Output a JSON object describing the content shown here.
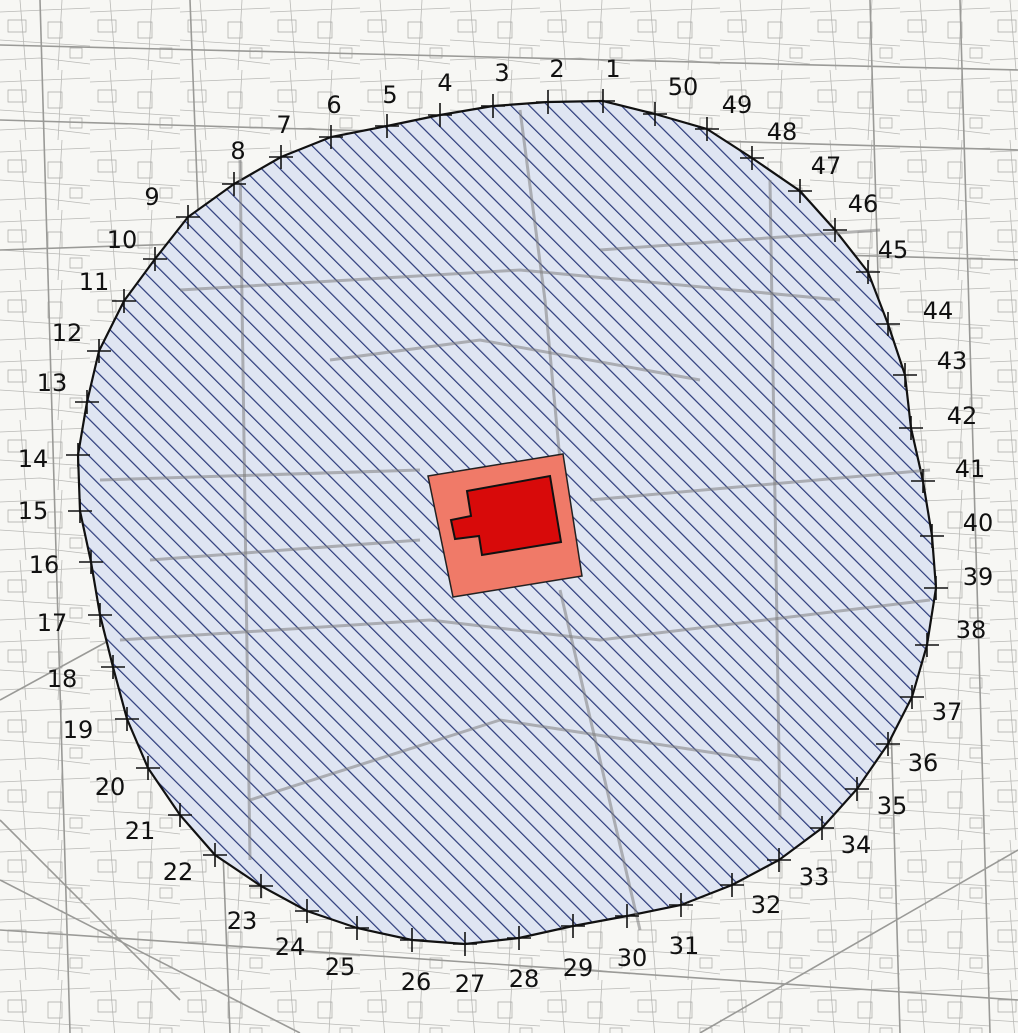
{
  "map": {
    "zone_color": "#2b3a7a",
    "zone_fill": "#c9d3ea",
    "building_outer_color": "#f26b5a",
    "building_inner_color": "#d40000",
    "basemap_line_color": "#8a8a8a"
  },
  "boundary_points": [
    {
      "label": "1"
    },
    {
      "label": "2"
    },
    {
      "label": "3"
    },
    {
      "label": "4"
    },
    {
      "label": "5"
    },
    {
      "label": "6"
    },
    {
      "label": "7"
    },
    {
      "label": "8"
    },
    {
      "label": "9"
    },
    {
      "label": "10"
    },
    {
      "label": "11"
    },
    {
      "label": "12"
    },
    {
      "label": "13"
    },
    {
      "label": "14"
    },
    {
      "label": "15"
    },
    {
      "label": "16"
    },
    {
      "label": "17"
    },
    {
      "label": "18"
    },
    {
      "label": "19"
    },
    {
      "label": "20"
    },
    {
      "label": "21"
    },
    {
      "label": "22"
    },
    {
      "label": "23"
    },
    {
      "label": "24"
    },
    {
      "label": "25"
    },
    {
      "label": "26"
    },
    {
      "label": "27"
    },
    {
      "label": "28"
    },
    {
      "label": "29"
    },
    {
      "label": "30"
    },
    {
      "label": "31"
    },
    {
      "label": "32"
    },
    {
      "label": "33"
    },
    {
      "label": "34"
    },
    {
      "label": "35"
    },
    {
      "label": "36"
    },
    {
      "label": "37"
    },
    {
      "label": "38"
    },
    {
      "label": "39"
    },
    {
      "label": "40"
    },
    {
      "label": "41"
    },
    {
      "label": "42"
    },
    {
      "label": "43"
    },
    {
      "label": "44"
    },
    {
      "label": "45"
    },
    {
      "label": "46"
    },
    {
      "label": "47"
    },
    {
      "label": "48"
    },
    {
      "label": "49"
    },
    {
      "label": "50"
    }
  ]
}
